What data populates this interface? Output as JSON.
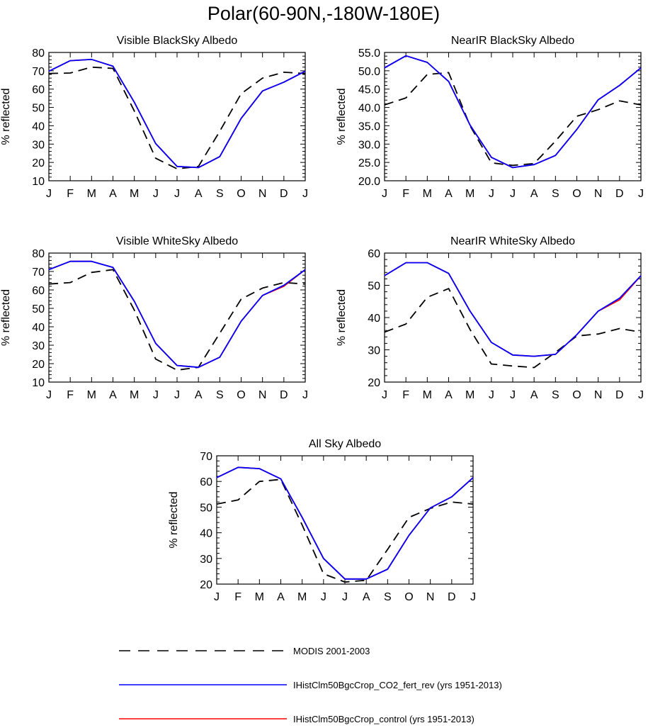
{
  "title": "Polar(60-90N,-180W-180E)",
  "colors": {
    "modis": "#000000",
    "co2": "#0000ff",
    "control": "#ff0000"
  },
  "legend": [
    {
      "label": "MODIS 2001-2003",
      "style": "dashed",
      "color": "#000000"
    },
    {
      "label": "IHistClm50BgcCrop_CO2_fert_rev (yrs 1951-2013)",
      "style": "solid",
      "color": "#0000ff"
    },
    {
      "label": "IHistClm50BgcCrop_control (yrs 1951-2013)",
      "style": "solid",
      "color": "#ff0000"
    }
  ],
  "chart_data": [
    {
      "type": "line",
      "title": "Visible BlackSky Albedo",
      "ylabel": "% reflected",
      "categories": [
        "J",
        "F",
        "M",
        "A",
        "M",
        "J",
        "J",
        "A",
        "S",
        "O",
        "N",
        "D",
        "J"
      ],
      "ylim": [
        10,
        80
      ],
      "yticks": [
        "10",
        "20",
        "30",
        "40",
        "50",
        "60",
        "70",
        "80"
      ],
      "series": [
        {
          "name": "MODIS 2001-2003",
          "style": "dashed",
          "values": [
            68.5,
            68.8,
            72.0,
            71.3,
            48.0,
            22.3,
            16.5,
            17.8,
            37.0,
            57.5,
            66.0,
            69.2,
            68.5
          ]
        },
        {
          "name": "IHistClm50BgcCrop_control (yrs 1951-2013)",
          "style": "solid",
          "values": [
            69.8,
            75.5,
            76.2,
            72.5,
            52.8,
            30.3,
            17.8,
            17.2,
            23.2,
            44.0,
            59.0,
            63.8,
            69.8
          ]
        },
        {
          "name": "IHistClm50BgcCrop_CO2_fert_rev (yrs 1951-2013)",
          "style": "solid",
          "values": [
            69.8,
            75.5,
            76.2,
            72.5,
            52.8,
            30.3,
            17.8,
            17.2,
            23.2,
            44.0,
            59.0,
            63.8,
            69.8
          ]
        }
      ]
    },
    {
      "type": "line",
      "title": "NearIR BlackSky Albedo",
      "ylabel": "% reflected",
      "categories": [
        "J",
        "F",
        "M",
        "A",
        "M",
        "J",
        "J",
        "A",
        "S",
        "O",
        "N",
        "D",
        "J"
      ],
      "ylim": [
        20,
        55
      ],
      "yticks": [
        "20.0",
        "25.0",
        "30.0",
        "35.0",
        "40.0",
        "45.0",
        "50.0",
        "55.0"
      ],
      "series": [
        {
          "name": "MODIS 2001-2003",
          "style": "dashed",
          "values": [
            40.7,
            42.6,
            49.0,
            49.5,
            35.0,
            24.9,
            24.2,
            24.7,
            30.8,
            37.6,
            39.4,
            41.8,
            40.7
          ]
        },
        {
          "name": "IHistClm50BgcCrop_control (yrs 1951-2013)",
          "style": "solid",
          "values": [
            50.8,
            54.1,
            52.3,
            47.1,
            35.2,
            26.4,
            23.6,
            24.4,
            26.9,
            34.0,
            42.1,
            46.0,
            50.8
          ]
        },
        {
          "name": "IHistClm50BgcCrop_CO2_fert_rev (yrs 1951-2013)",
          "style": "solid",
          "values": [
            50.8,
            54.1,
            52.3,
            47.1,
            35.2,
            26.4,
            23.6,
            24.4,
            26.9,
            34.0,
            42.1,
            46.0,
            50.8
          ]
        }
      ]
    },
    {
      "type": "line",
      "title": "Visible WhiteSky Albedo",
      "ylabel": "% reflected",
      "categories": [
        "J",
        "F",
        "M",
        "A",
        "M",
        "J",
        "J",
        "A",
        "S",
        "O",
        "N",
        "D",
        "J"
      ],
      "ylim": [
        10,
        80
      ],
      "yticks": [
        "10",
        "20",
        "30",
        "40",
        "50",
        "60",
        "70",
        "80"
      ],
      "series": [
        {
          "name": "MODIS 2001-2003",
          "style": "dashed",
          "values": [
            63.2,
            64.0,
            69.5,
            71.0,
            49.0,
            22.5,
            16.5,
            18.0,
            36.5,
            55.0,
            61.0,
            64.0,
            63.2
          ]
        },
        {
          "name": "IHistClm50BgcCrop_control (yrs 1951-2013)",
          "style": "solid",
          "values": [
            71.0,
            75.5,
            75.5,
            72.2,
            53.8,
            31.0,
            19.0,
            18.0,
            23.5,
            43.0,
            57.0,
            62.0,
            71.0
          ]
        },
        {
          "name": "IHistClm50BgcCrop_CO2_fert_rev (yrs 1951-2013)",
          "style": "solid",
          "values": [
            71.0,
            75.5,
            75.5,
            72.2,
            53.8,
            31.0,
            19.0,
            18.0,
            23.5,
            43.0,
            57.0,
            62.5,
            71.0
          ]
        }
      ]
    },
    {
      "type": "line",
      "title": "NearIR WhiteSky Albedo",
      "ylabel": "% reflected",
      "categories": [
        "J",
        "F",
        "M",
        "A",
        "M",
        "J",
        "J",
        "A",
        "S",
        "O",
        "N",
        "D",
        "J"
      ],
      "ylim": [
        20,
        60
      ],
      "yticks": [
        "20",
        "30",
        "40",
        "50",
        "60"
      ],
      "series": [
        {
          "name": "MODIS 2001-2003",
          "style": "dashed",
          "values": [
            35.5,
            38.0,
            46.3,
            49.0,
            36.3,
            25.6,
            25.0,
            24.5,
            29.2,
            34.3,
            34.9,
            36.6,
            35.5
          ]
        },
        {
          "name": "IHistClm50BgcCrop_control (yrs 1951-2013)",
          "style": "solid",
          "values": [
            53.0,
            57.0,
            57.0,
            53.7,
            42.0,
            32.3,
            28.4,
            28.0,
            28.6,
            34.7,
            42.0,
            45.5,
            53.0
          ]
        },
        {
          "name": "IHistClm50BgcCrop_CO2_fert_rev (yrs 1951-2013)",
          "style": "solid",
          "values": [
            53.0,
            57.0,
            57.0,
            53.7,
            42.0,
            32.3,
            28.4,
            28.0,
            28.6,
            34.7,
            42.0,
            46.0,
            53.0
          ]
        }
      ]
    },
    {
      "type": "line",
      "title": "All Sky Albedo",
      "ylabel": "% reflected",
      "categories": [
        "J",
        "F",
        "M",
        "A",
        "M",
        "J",
        "J",
        "A",
        "S",
        "O",
        "N",
        "D",
        "J"
      ],
      "ylim": [
        20,
        70
      ],
      "yticks": [
        "20",
        "30",
        "40",
        "50",
        "60",
        "70"
      ],
      "series": [
        {
          "name": "MODIS 2001-2003",
          "style": "dashed",
          "values": [
            51.2,
            52.8,
            60.0,
            60.8,
            43.0,
            24.0,
            20.8,
            21.5,
            33.5,
            46.0,
            49.5,
            52.0,
            51.2
          ]
        },
        {
          "name": "IHistClm50BgcCrop_control (yrs 1951-2013)",
          "style": "solid",
          "values": [
            61.5,
            65.5,
            65.0,
            61.0,
            46.0,
            30.0,
            22.0,
            22.0,
            25.8,
            39.0,
            49.7,
            54.0,
            61.5
          ]
        },
        {
          "name": "IHistClm50BgcCrop_CO2_fert_rev (yrs 1951-2013)",
          "style": "solid",
          "values": [
            61.5,
            65.5,
            65.0,
            61.0,
            46.0,
            30.0,
            22.0,
            22.0,
            25.8,
            39.0,
            49.7,
            54.0,
            61.5
          ]
        }
      ]
    }
  ]
}
